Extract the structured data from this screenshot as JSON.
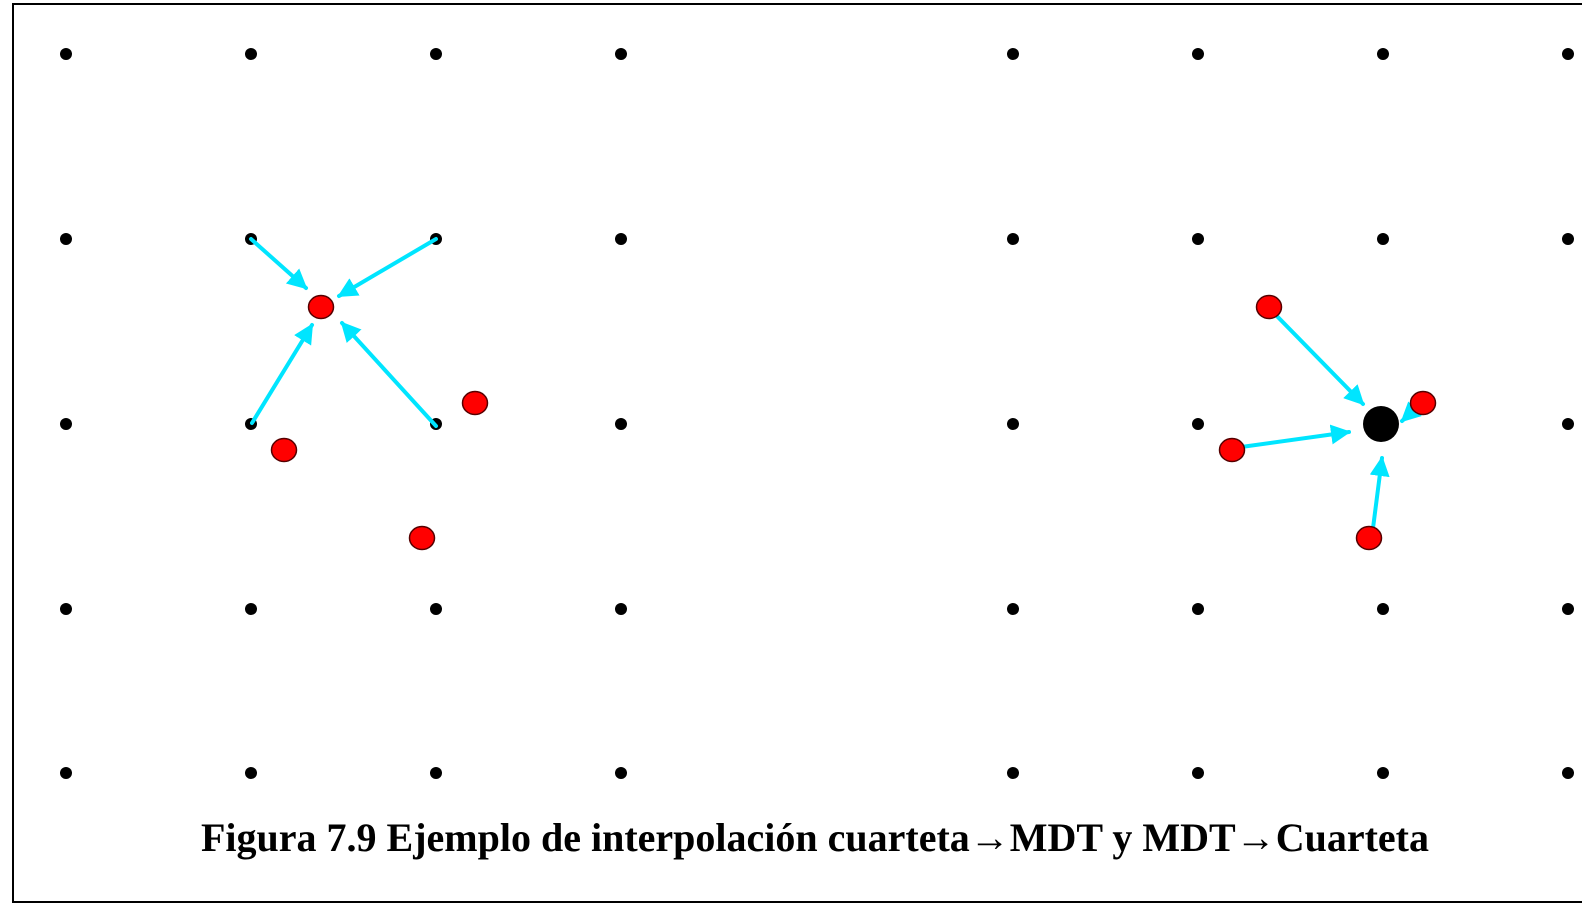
{
  "caption": "Figura 7.9 Ejemplo de interpolación cuarteta→MDT y MDT→Cuarteta",
  "colors": {
    "grid_node": "#000000",
    "sample_point": "#ff0000",
    "sample_point_outline": "#550000",
    "arrow": "#00e5ff",
    "border": "#000000"
  },
  "panels": [
    {
      "name": "cuarteta-to-mdt",
      "description_type": "four grid nodes interpolated to one sample point"
    },
    {
      "name": "mdt-to-cuarteta",
      "description_type": "four sample points interpolated to one grid node"
    }
  ]
}
